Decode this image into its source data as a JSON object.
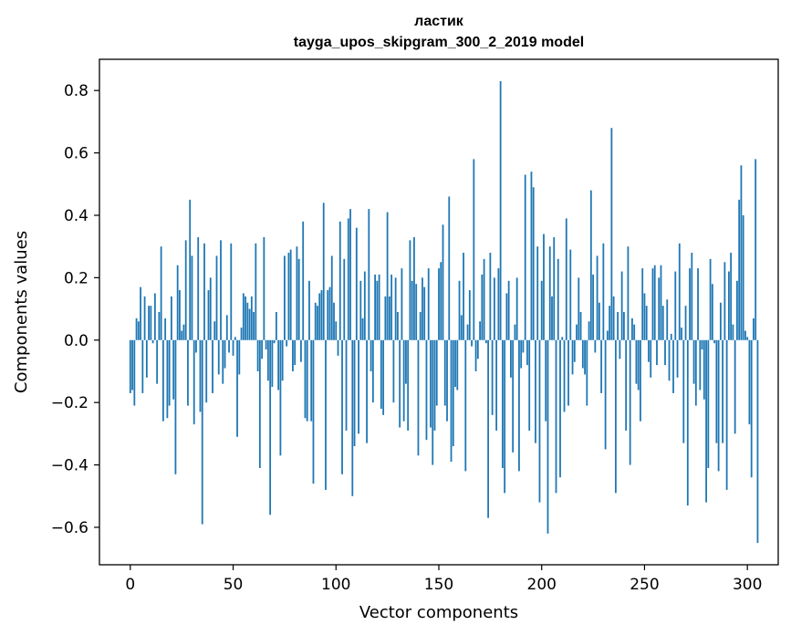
{
  "chart_data": {
    "type": "bar",
    "title_lines": [
      "ластик",
      "tayga_upos_skipgram_300_2_2019 model"
    ],
    "xlabel": "Vector components",
    "ylabel": "Components values",
    "xlim": [
      -15,
      315
    ],
    "ylim": [
      -0.72,
      0.9
    ],
    "x_ticks": [
      0,
      50,
      100,
      150,
      200,
      250,
      300
    ],
    "x_tick_labels": [
      "0",
      "50",
      "100",
      "150",
      "200",
      "250",
      "300"
    ],
    "y_ticks": [
      -0.6,
      -0.4,
      -0.2,
      0.0,
      0.2,
      0.4,
      0.6,
      0.8
    ],
    "y_tick_labels": [
      "−0.6",
      "−0.4",
      "−0.2",
      "0.0",
      "0.2",
      "0.4",
      "0.6",
      "0.8"
    ],
    "bar_color": "#1f77b4",
    "values": [
      -0.17,
      -0.16,
      -0.21,
      0.07,
      0.06,
      0.17,
      -0.17,
      0.14,
      -0.12,
      0.11,
      0.11,
      -0.01,
      0.15,
      -0.14,
      0.09,
      0.3,
      -0.26,
      0.07,
      -0.25,
      -0.21,
      0.14,
      -0.19,
      -0.43,
      0.24,
      0.16,
      0.03,
      0.05,
      0.32,
      -0.21,
      0.45,
      0.27,
      -0.27,
      -0.04,
      0.33,
      -0.23,
      -0.59,
      0.31,
      -0.2,
      0.16,
      0.2,
      -0.17,
      0.06,
      0.27,
      -0.11,
      0.32,
      -0.14,
      -0.09,
      0.08,
      -0.04,
      0.31,
      -0.05,
      0.01,
      -0.31,
      -0.11,
      0.04,
      0.15,
      0.14,
      0.12,
      0.1,
      0.14,
      0.09,
      0.31,
      -0.1,
      -0.41,
      -0.06,
      0.33,
      -0.03,
      -0.13,
      -0.56,
      -0.15,
      -0.01,
      0.09,
      -0.16,
      -0.37,
      -0.13,
      0.27,
      -0.02,
      0.28,
      0.29,
      -0.1,
      -0.08,
      0.3,
      0.26,
      -0.07,
      0.38,
      -0.25,
      -0.26,
      0.19,
      -0.26,
      -0.46,
      0.12,
      0.11,
      0.15,
      0.16,
      0.44,
      -0.48,
      0.16,
      0.17,
      0.27,
      0.12,
      0.06,
      -0.05,
      0.38,
      -0.43,
      0.26,
      -0.29,
      0.39,
      0.42,
      -0.5,
      -0.34,
      0.36,
      -0.3,
      0.19,
      0.07,
      0.22,
      -0.33,
      0.42,
      -0.1,
      -0.2,
      0.21,
      0.19,
      0.21,
      -0.22,
      -0.24,
      0.14,
      0.41,
      0.14,
      0.21,
      -0.2,
      0.2,
      0.09,
      -0.28,
      0.23,
      -0.26,
      -0.14,
      -0.29,
      0.32,
      0.19,
      0.33,
      0.18,
      -0.37,
      0.09,
      0.2,
      0.17,
      -0.32,
      0.23,
      -0.28,
      -0.4,
      -0.29,
      -0.21,
      0.23,
      0.25,
      0.37,
      -0.21,
      -0.26,
      0.46,
      -0.39,
      -0.34,
      -0.15,
      -0.16,
      0.19,
      0.08,
      0.28,
      -0.42,
      0.05,
      0.16,
      -0.02,
      0.58,
      -0.1,
      -0.06,
      0.06,
      0.21,
      0.26,
      -0.01,
      -0.57,
      0.28,
      -0.24,
      0.2,
      -0.29,
      0.23,
      0.83,
      -0.41,
      -0.49,
      0.15,
      0.19,
      -0.12,
      -0.36,
      0.05,
      0.2,
      -0.42,
      -0.09,
      -0.04,
      0.53,
      -0.08,
      -0.29,
      0.54,
      0.49,
      -0.33,
      0.3,
      -0.52,
      0.19,
      0.34,
      -0.26,
      -0.62,
      0.3,
      0.14,
      0.33,
      -0.49,
      0.26,
      -0.44,
      0.01,
      -0.23,
      0.39,
      -0.21,
      0.29,
      -0.11,
      -0.07,
      0.05,
      0.2,
      0.09,
      -0.09,
      -0.11,
      -0.21,
      0.06,
      0.48,
      0.21,
      -0.04,
      0.27,
      0.12,
      -0.17,
      0.31,
      -0.35,
      0.03,
      0.11,
      0.68,
      0.14,
      -0.49,
      0.09,
      -0.06,
      0.22,
      0.09,
      -0.29,
      0.3,
      -0.4,
      0.07,
      0.05,
      -0.14,
      -0.16,
      -0.26,
      0.23,
      0.15,
      0.11,
      -0.07,
      -0.12,
      0.23,
      0.24,
      -0.08,
      0.2,
      0.24,
      0.11,
      -0.08,
      0.13,
      -0.13,
      0.02,
      -0.17,
      0.22,
      -0.12,
      0.31,
      0.04,
      -0.33,
      0.11,
      -0.53,
      0.23,
      0.28,
      -0.14,
      -0.21,
      0.23,
      -0.16,
      -0.03,
      -0.19,
      -0.52,
      -0.41,
      0.26,
      0.18,
      -0.01,
      -0.33,
      -0.42,
      0.12,
      -0.33,
      0.25,
      -0.48,
      0.22,
      0.28,
      0.05,
      -0.3,
      0.19,
      0.45,
      0.56,
      0.4,
      0.03,
      0.01,
      -0.27,
      -0.44,
      0.07,
      0.58,
      -0.65
    ]
  }
}
